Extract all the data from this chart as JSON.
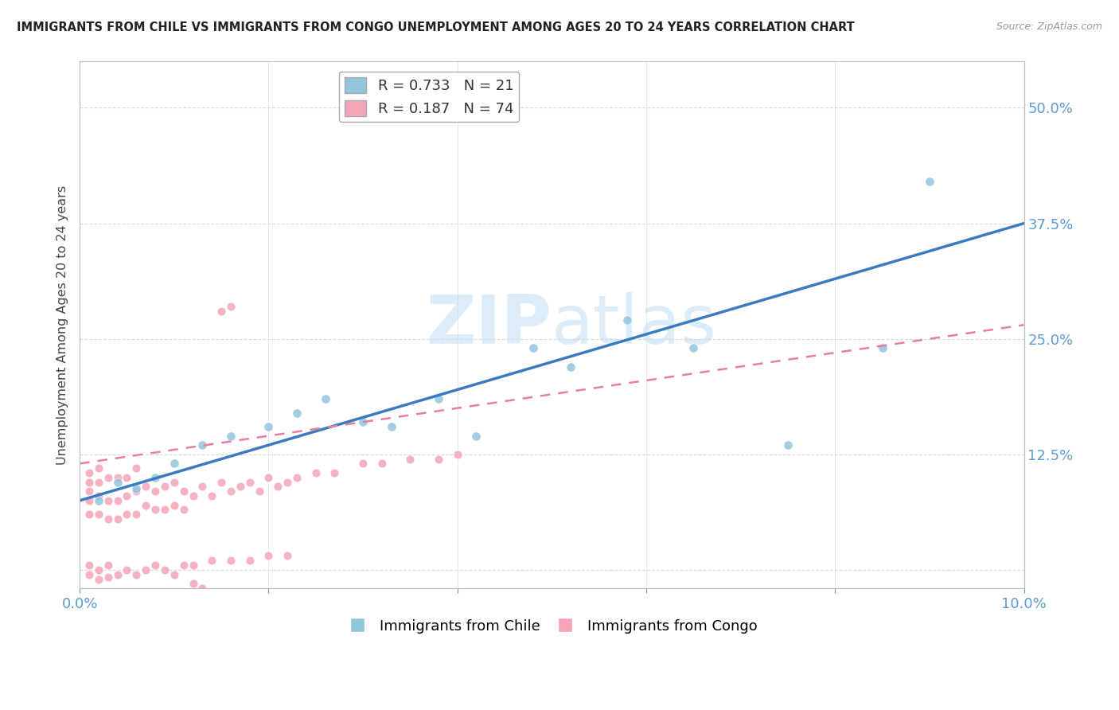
{
  "title": "IMMIGRANTS FROM CHILE VS IMMIGRANTS FROM CONGO UNEMPLOYMENT AMONG AGES 20 TO 24 YEARS CORRELATION CHART",
  "source": "Source: ZipAtlas.com",
  "ylabel": "Unemployment Among Ages 20 to 24 years",
  "xlim": [
    0.0,
    0.1
  ],
  "ylim": [
    -0.02,
    0.55
  ],
  "yticks": [
    0.0,
    0.125,
    0.25,
    0.375,
    0.5
  ],
  "ytick_labels": [
    "",
    "12.5%",
    "25.0%",
    "37.5%",
    "50.0%"
  ],
  "chile_R": 0.733,
  "chile_N": 21,
  "congo_R": 0.187,
  "congo_N": 74,
  "chile_color": "#92c5de",
  "congo_color": "#f4a6b8",
  "chile_line_color": "#3a7bbf",
  "congo_line_color": "#e87fa0",
  "watermark_color": "#d6eaf8",
  "background_color": "#ffffff",
  "grid_color": "#d5d5d5",
  "chile_x": [
    0.002,
    0.004,
    0.006,
    0.008,
    0.01,
    0.013,
    0.016,
    0.02,
    0.023,
    0.026,
    0.03,
    0.033,
    0.038,
    0.042,
    0.048,
    0.052,
    0.058,
    0.065,
    0.075,
    0.085,
    0.09
  ],
  "chile_y": [
    0.075,
    0.095,
    0.088,
    0.1,
    0.115,
    0.135,
    0.145,
    0.155,
    0.17,
    0.185,
    0.16,
    0.155,
    0.185,
    0.145,
    0.24,
    0.22,
    0.27,
    0.24,
    0.135,
    0.24,
    0.42
  ],
  "congo_x": [
    0.001,
    0.001,
    0.001,
    0.001,
    0.001,
    0.002,
    0.002,
    0.002,
    0.002,
    0.003,
    0.003,
    0.003,
    0.004,
    0.004,
    0.004,
    0.005,
    0.005,
    0.005,
    0.006,
    0.006,
    0.006,
    0.007,
    0.007,
    0.008,
    0.008,
    0.009,
    0.009,
    0.01,
    0.01,
    0.011,
    0.011,
    0.012,
    0.013,
    0.014,
    0.015,
    0.016,
    0.017,
    0.018,
    0.019,
    0.02,
    0.021,
    0.022,
    0.023,
    0.025,
    0.027,
    0.03,
    0.032,
    0.035,
    0.038,
    0.04,
    0.001,
    0.001,
    0.002,
    0.002,
    0.003,
    0.003,
    0.004,
    0.005,
    0.006,
    0.007,
    0.008,
    0.009,
    0.01,
    0.011,
    0.012,
    0.014,
    0.016,
    0.018,
    0.02,
    0.022,
    0.015,
    0.016,
    0.012,
    0.013
  ],
  "congo_y": [
    0.06,
    0.075,
    0.085,
    0.095,
    0.105,
    0.06,
    0.08,
    0.095,
    0.11,
    0.055,
    0.075,
    0.1,
    0.055,
    0.075,
    0.1,
    0.06,
    0.08,
    0.1,
    0.06,
    0.085,
    0.11,
    0.07,
    0.09,
    0.065,
    0.085,
    0.065,
    0.09,
    0.07,
    0.095,
    0.065,
    0.085,
    0.08,
    0.09,
    0.08,
    0.095,
    0.085,
    0.09,
    0.095,
    0.085,
    0.1,
    0.09,
    0.095,
    0.1,
    0.105,
    0.105,
    0.115,
    0.115,
    0.12,
    0.12,
    0.125,
    -0.005,
    0.005,
    -0.01,
    0.0,
    -0.008,
    0.005,
    -0.005,
    0.0,
    -0.005,
    0.0,
    0.005,
    0.0,
    -0.005,
    0.005,
    0.005,
    0.01,
    0.01,
    0.01,
    0.015,
    0.015,
    0.28,
    0.285,
    -0.015,
    -0.02
  ]
}
